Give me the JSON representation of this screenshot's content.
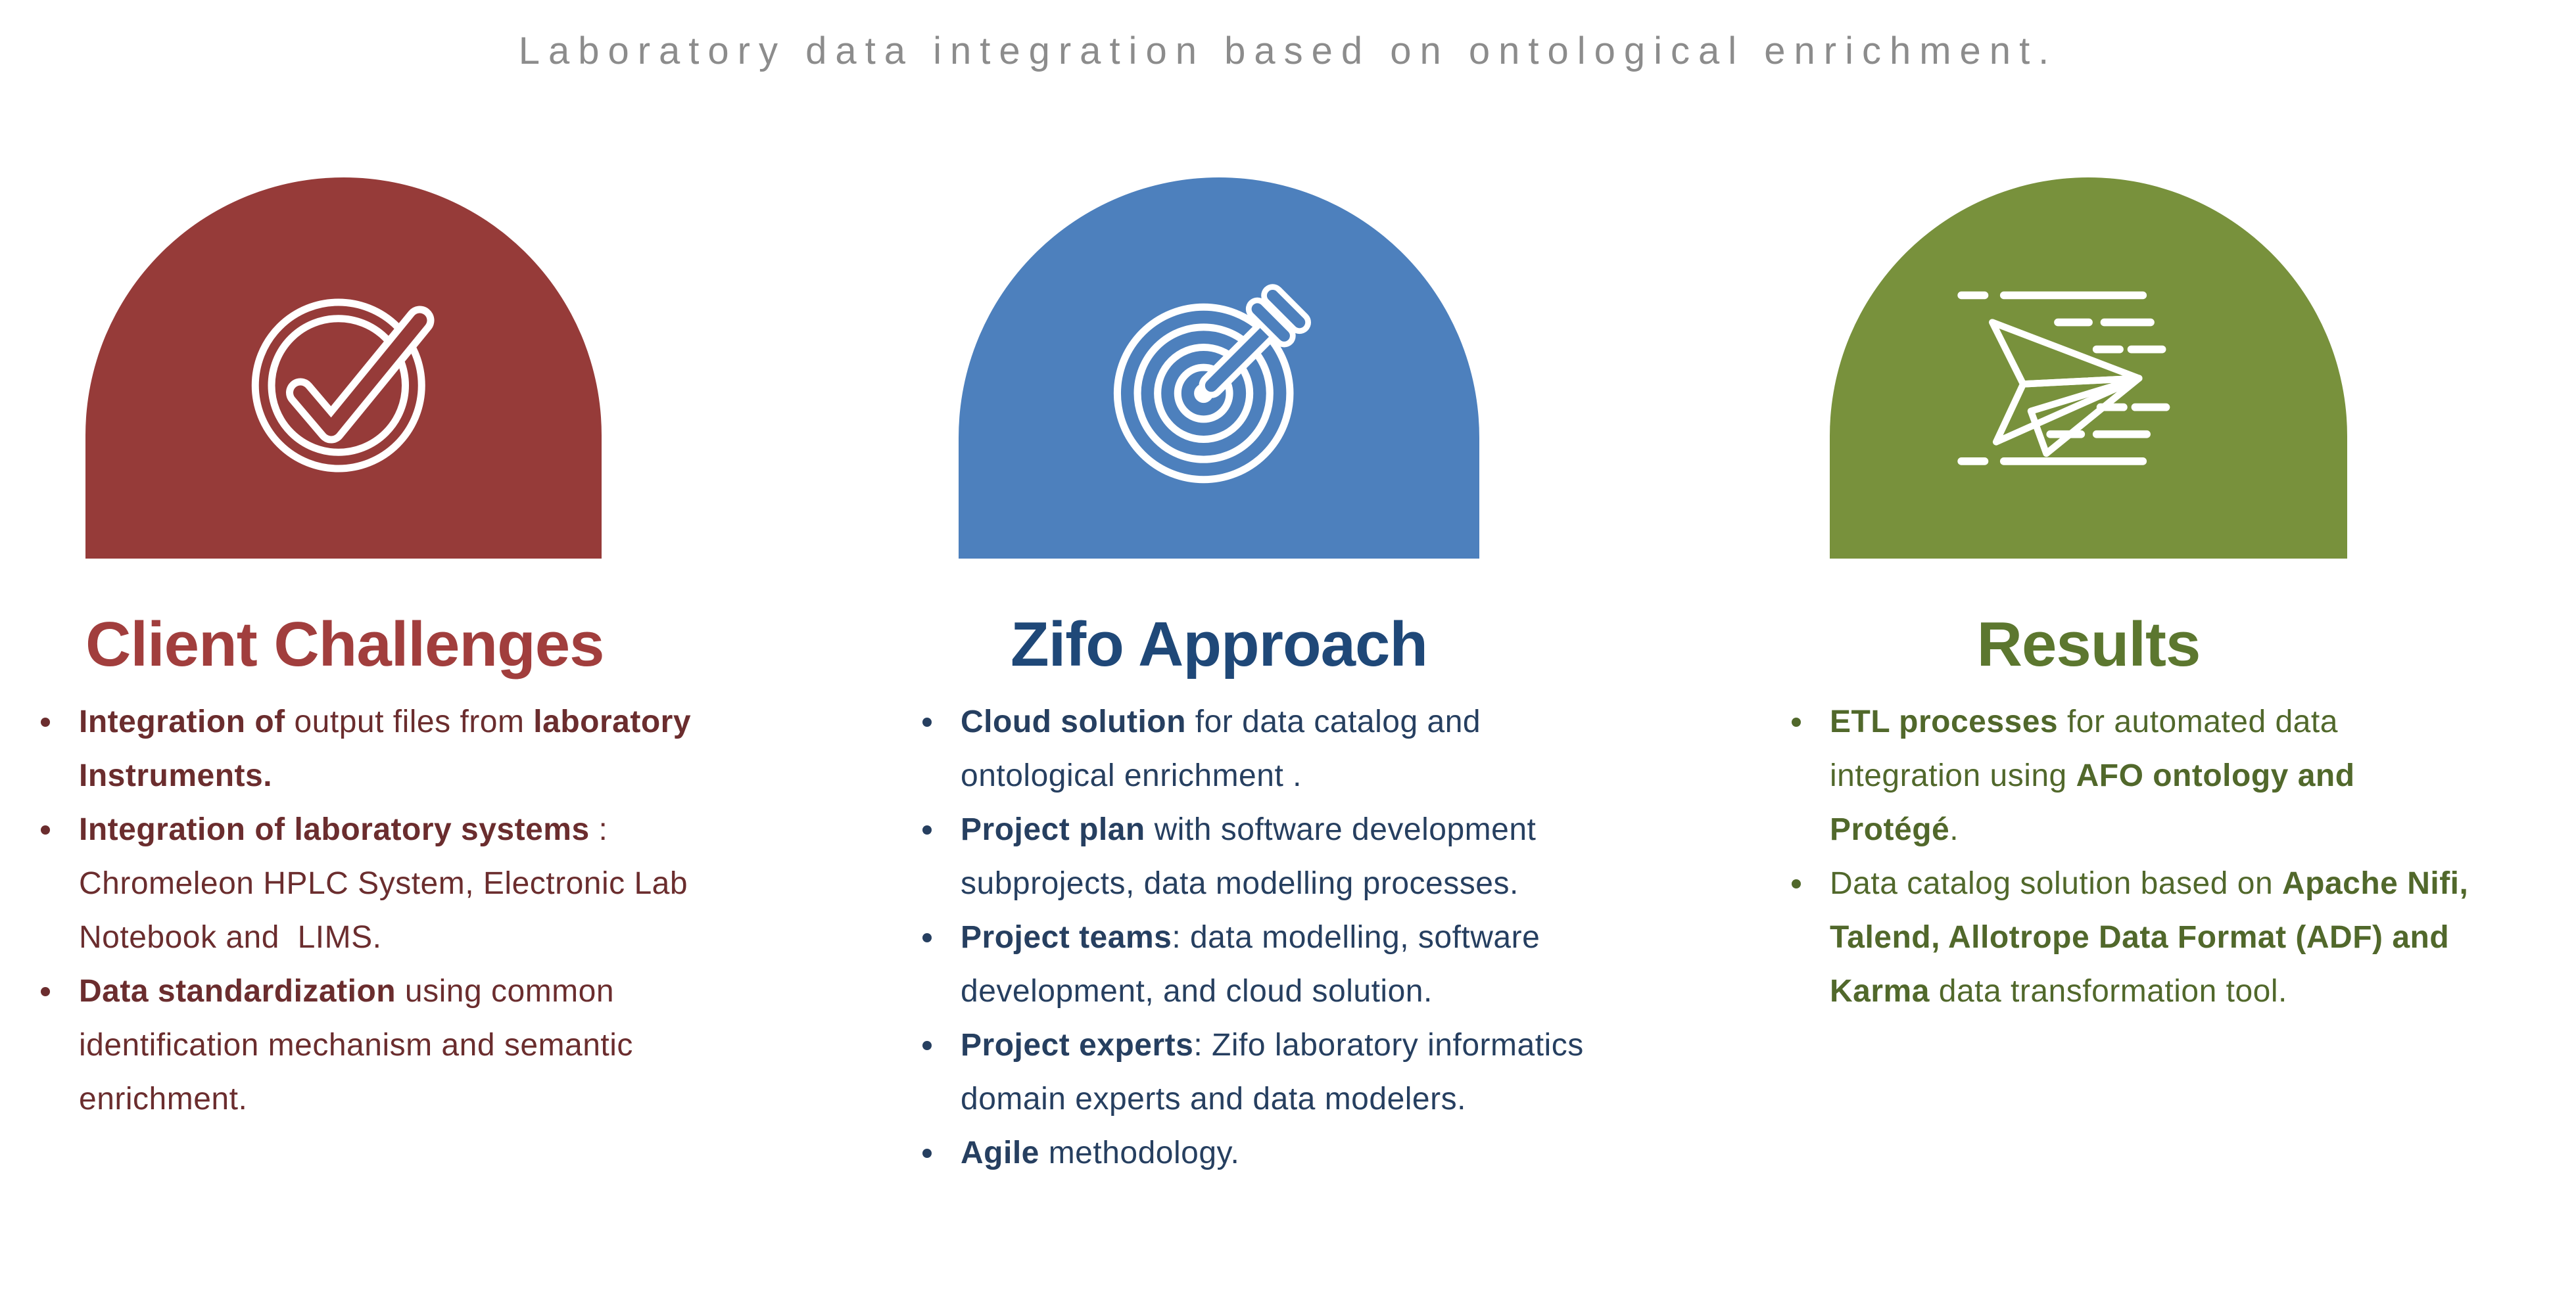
{
  "title": {
    "text": "Laboratory data integration based on ontological enrichment.",
    "color": "#8C8C8C"
  },
  "columns": [
    {
      "heading": "Client Challenges",
      "icon": "check-circle-icon",
      "colors": {
        "accent": "#963B39",
        "heading": "#A13E3D",
        "body": "#6B2D2E"
      },
      "bullets": [
        {
          "lines": [
            [
              {
                "t": "Integration of ",
                "b": true
              },
              {
                "t": "output files from ",
                "b": false
              },
              {
                "t": "laboratory",
                "b": true
              }
            ],
            [
              {
                "t": "Instruments.",
                "b": true
              }
            ]
          ]
        },
        {
          "lines": [
            [
              {
                "t": "Integration of laboratory systems",
                "b": true
              },
              {
                "t": " :",
                "b": false
              }
            ],
            [
              {
                "t": "Chromeleon HPLC System, Electronic Lab",
                "b": false
              }
            ],
            [
              {
                "t": "Notebook and  LIMS.",
                "b": false
              }
            ]
          ]
        },
        {
          "lines": [
            [
              {
                "t": "Data standardization",
                "b": true
              },
              {
                "t": " using common",
                "b": false
              }
            ],
            [
              {
                "t": "identification mechanism and semantic",
                "b": false
              }
            ],
            [
              {
                "t": "enrichment.",
                "b": false
              }
            ]
          ]
        }
      ]
    },
    {
      "heading": "Zifo Approach",
      "icon": "target-dart-icon",
      "colors": {
        "accent": "#4D80BD",
        "heading": "#1F4878",
        "body": "#263F60"
      },
      "bullets": [
        {
          "lines": [
            [
              {
                "t": "Cloud solution",
                "b": true
              },
              {
                "t": " for data catalog and",
                "b": false
              }
            ],
            [
              {
                "t": "ontological enrichment .",
                "b": false
              }
            ]
          ]
        },
        {
          "lines": [
            [
              {
                "t": "Project plan",
                "b": true
              },
              {
                "t": " with software development",
                "b": false
              }
            ],
            [
              {
                "t": "subprojects, data modelling processes.",
                "b": false
              }
            ]
          ]
        },
        {
          "lines": [
            [
              {
                "t": "Project teams",
                "b": true
              },
              {
                "t": ": data modelling, software",
                "b": false
              }
            ],
            [
              {
                "t": "development, and cloud solution.",
                "b": false
              }
            ]
          ]
        },
        {
          "lines": [
            [
              {
                "t": "Project experts",
                "b": true
              },
              {
                "t": ": Zifo laboratory informatics",
                "b": false
              }
            ],
            [
              {
                "t": "domain experts and data modelers.",
                "b": false
              }
            ]
          ]
        },
        {
          "lines": [
            [
              {
                "t": "Agile",
                "b": true
              },
              {
                "t": " methodology.",
                "b": false
              }
            ]
          ]
        }
      ]
    },
    {
      "heading": "Results",
      "icon": "paper-plane-icon",
      "colors": {
        "accent": "#78913C",
        "heading": "#5C772F",
        "body": "#51682B"
      },
      "bullets": [
        {
          "lines": [
            [
              {
                "t": "ETL processes",
                "b": true
              },
              {
                "t": " for automated data",
                "b": false
              }
            ],
            [
              {
                "t": "integration using ",
                "b": false
              },
              {
                "t": "AFO ontology and",
                "b": true
              }
            ],
            [
              {
                "t": "Protégé",
                "b": true
              },
              {
                "t": ".",
                "b": false
              }
            ]
          ]
        },
        {
          "lines": [
            [
              {
                "t": "Data catalog solution based on ",
                "b": false
              },
              {
                "t": "Apache Nifi,",
                "b": true
              }
            ],
            [
              {
                "t": "Talend, Allotrope Data Format (ADF) and",
                "b": true
              }
            ],
            [
              {
                "t": "Karma",
                "b": true
              },
              {
                "t": " data transformation tool.",
                "b": false
              }
            ]
          ]
        }
      ]
    }
  ]
}
